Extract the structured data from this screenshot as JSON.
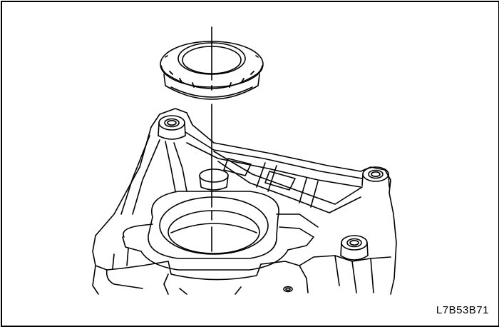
{
  "figure": {
    "code": "L7B53B71",
    "line_color": "#000000",
    "background": "#ffffff"
  },
  "components": {
    "seal": "oil-seal-ring",
    "housing": "transmission-case-housing",
    "guide": "installation-guide-line"
  }
}
